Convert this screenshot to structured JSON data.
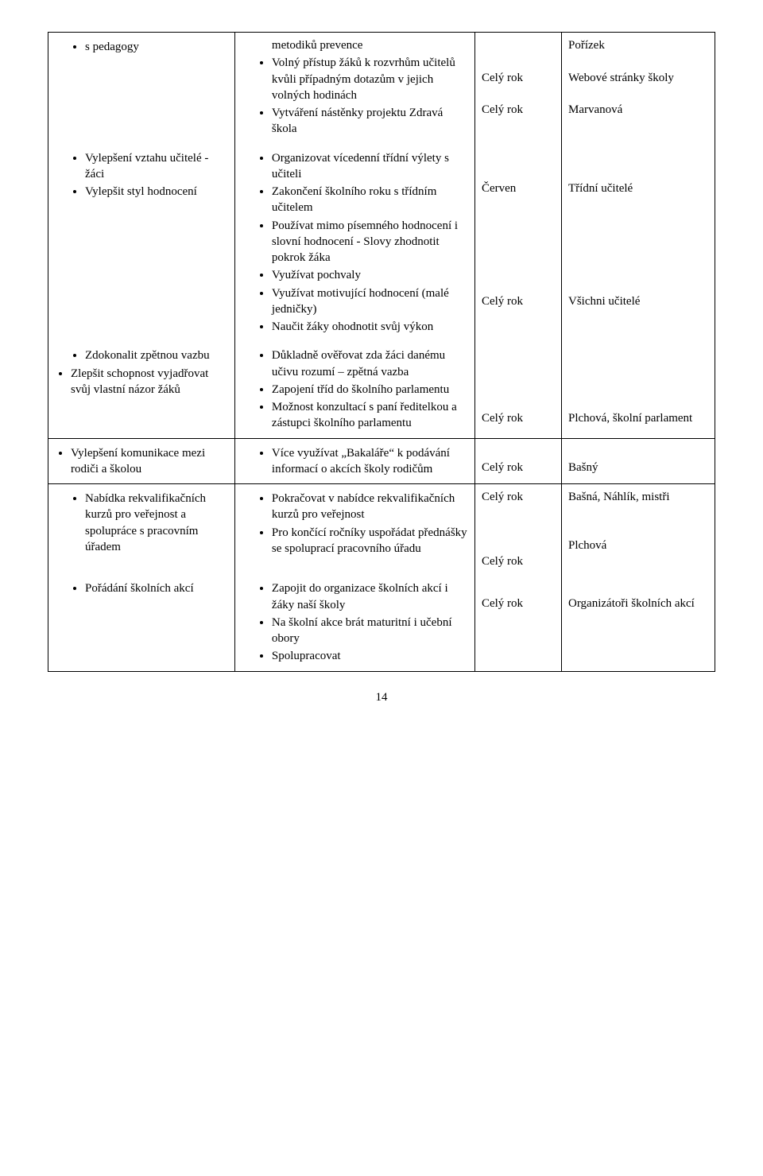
{
  "rows": [
    {
      "c1": {
        "indent": "lvl2",
        "items": [
          "s pedagogy"
        ]
      },
      "c2": {
        "indent": "lvl2",
        "plainFirst": "metodiků prevence",
        "items": [
          "Volný přístup žáků k rozvrhům učitelů kvůli případným dotazům v jejich volných hodinách",
          "Vytváření nástěnky projektu Zdravá škola"
        ]
      },
      "c3": {
        "lines": [
          "",
          "",
          "Celý rok",
          "",
          "Celý rok"
        ]
      },
      "c4": {
        "lines": [
          "Pořízek",
          "",
          "Webové stránky školy",
          "",
          "Marvanová"
        ]
      },
      "border": "no-bottom"
    },
    {
      "c1": {
        "indent": "lvl2",
        "items": [
          "Vylepšení vztahu učitelé - žáci",
          "Vylepšit styl hodnocení"
        ]
      },
      "c2": {
        "indent": "lvl2",
        "items": [
          "Organizovat vícedenní třídní výlety s učiteli",
          "Zakončení školního roku s třídním učitelem",
          "Používat mimo písemného hodnocení i slovní hodnocení - Slovy zhodnotit pokrok žáka",
          "Využívat pochvaly",
          "Využívat motivující hodnocení (malé jedničky)",
          "Naučit žáky ohodnotit svůj výkon"
        ]
      },
      "c3": {
        "lines": [
          "",
          "",
          "Červen",
          "",
          "",
          "",
          "",
          "",
          "",
          "Celý rok"
        ]
      },
      "c4": {
        "lines": [
          "",
          "",
          "Třídní učitelé",
          "",
          "",
          "",
          "",
          "",
          "",
          "Všichni učitelé"
        ]
      },
      "border": "no-top no-bottom"
    },
    {
      "c1": {
        "indent": "lvl2",
        "items": [
          "Zdokonalit zpětnou vazbu"
        ],
        "extraLvl1": [
          "Zlepšit schopnost vyjadřovat svůj vlastní názor žáků"
        ]
      },
      "c2": {
        "indent": "lvl2",
        "items": [
          "Důkladně ověřovat zda žáci danému učivu rozumí – zpětná vazba",
          "Zapojení tříd do školního parlamentu",
          "Možnost konzultací s paní ředitelkou a zástupci školního parlamentu"
        ]
      },
      "c3": {
        "lines": [
          "",
          "",
          "",
          "",
          "Celý rok"
        ]
      },
      "c4": {
        "lines": [
          "",
          "",
          "",
          "",
          "Plchová, školní parlament"
        ]
      },
      "border": "no-top"
    },
    {
      "c1": {
        "indent": "lvl1",
        "items": [
          "Vylepšení komunikace mezi rodiči a školou"
        ]
      },
      "c2": {
        "indent": "lvl2",
        "items": [
          "Více využívat „Bakaláře“ k podávání informací o akcích školy rodičům"
        ]
      },
      "c3": {
        "lines": [
          "",
          "Celý rok"
        ]
      },
      "c4": {
        "lines": [
          "",
          "Bašný"
        ]
      }
    },
    {
      "c1": {
        "indent": "lvl2",
        "items": [
          "Nabídka rekvalifikačních kurzů pro veřejnost a spolupráce s pracovním úřadem"
        ]
      },
      "c2": {
        "indent": "lvl2",
        "items": [
          "Pokračovat v nabídce rekvalifikačních kurzů pro veřejnost",
          "Pro končící ročníky uspořádat přednášky se spoluprací pracovního úřadu"
        ]
      },
      "c3": {
        "lines": [
          " Celý rok",
          "",
          "",
          "",
          "Celý rok"
        ]
      },
      "c4": {
        "lines": [
          "Bašná, Náhlík, mistři",
          "",
          "",
          "Plchová"
        ]
      },
      "border": "no-bottom"
    },
    {
      "c1": {
        "indent": "lvl2",
        "items": [
          "Pořádání školních akcí"
        ]
      },
      "c2": {
        "indent": "lvl2",
        "items": [
          "Zapojit do organizace školních akcí i žáky naší školy",
          "Na školní akce brát maturitní i učební obory",
          "Spolupracovat"
        ]
      },
      "c3": {
        "lines": [
          "",
          "Celý rok"
        ]
      },
      "c4": {
        "lines": [
          "",
          "Organizátoři školních akcí"
        ]
      },
      "border": "no-top"
    }
  ],
  "pageNumber": "14"
}
